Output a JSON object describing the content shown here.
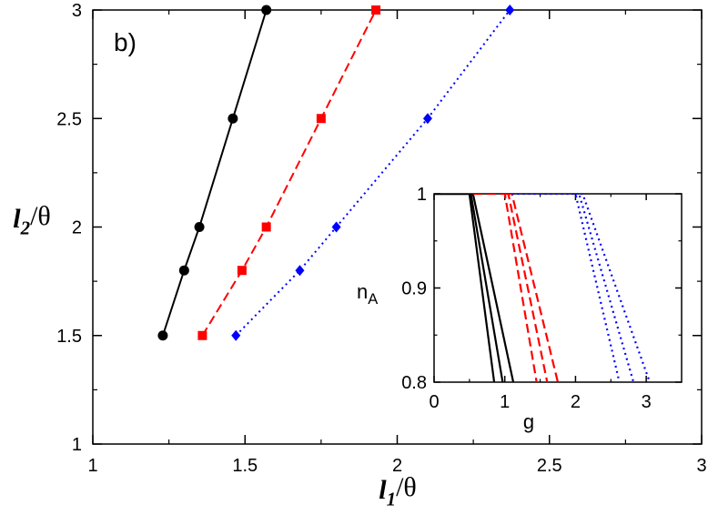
{
  "chart_data": [
    {
      "type": "line",
      "panel_label": "b)",
      "xlabel": {
        "main": "l",
        "sub": "1",
        "rest": "/θ"
      },
      "ylabel": {
        "main": "l",
        "sub": "2",
        "rest": "/θ"
      },
      "xlim": [
        1,
        3
      ],
      "ylim": [
        1,
        3
      ],
      "xticks": [
        1,
        1.5,
        2,
        2.5,
        3
      ],
      "yticks": [
        1,
        1.5,
        2,
        2.5,
        3
      ],
      "xtick_labels": [
        "1",
        "1.5",
        "2",
        "2.5",
        "3"
      ],
      "ytick_labels": [
        "1",
        "1.5",
        "2",
        "2.5",
        "3"
      ],
      "grid": false,
      "series": [
        {
          "color": "#000000",
          "linestyle": "solid",
          "marker": "circle",
          "points": [
            [
              1.23,
              1.5
            ],
            [
              1.3,
              1.8
            ],
            [
              1.35,
              2.0
            ],
            [
              1.46,
              2.5
            ],
            [
              1.57,
              3.0
            ]
          ]
        },
        {
          "color": "#ff0000",
          "linestyle": "dashed",
          "marker": "square",
          "points": [
            [
              1.36,
              1.5
            ],
            [
              1.49,
              1.8
            ],
            [
              1.57,
              2.0
            ],
            [
              1.75,
              2.5
            ],
            [
              1.93,
              3.0
            ]
          ]
        },
        {
          "color": "#0000ff",
          "linestyle": "dotted",
          "marker": "diamond",
          "points": [
            [
              1.47,
              1.5
            ],
            [
              1.68,
              1.8
            ],
            [
              1.8,
              2.0
            ],
            [
              2.1,
              2.5
            ],
            [
              2.37,
              3.0
            ]
          ]
        }
      ]
    },
    {
      "type": "line",
      "inset": true,
      "xlabel": "g",
      "ylabel": {
        "main": "n",
        "sub": "A"
      },
      "xlim": [
        0,
        3.5
      ],
      "ylim": [
        0.8,
        1.0
      ],
      "xticks": [
        0,
        1,
        2,
        3
      ],
      "yticks": [
        0.8,
        0.9,
        1.0
      ],
      "xtick_labels": [
        "0",
        "1",
        "2",
        "3"
      ],
      "ytick_labels": [
        "0.8",
        "0.9",
        "1"
      ],
      "grid": false,
      "series": [
        {
          "color": "#000000",
          "linestyle": "solid",
          "points": [
            [
              0,
              1.0
            ],
            [
              0.5,
              1.0
            ],
            [
              0.85,
              0.8
            ]
          ]
        },
        {
          "color": "#000000",
          "linestyle": "solid",
          "points": [
            [
              0,
              1.0
            ],
            [
              0.52,
              1.0
            ],
            [
              0.97,
              0.8
            ]
          ]
        },
        {
          "color": "#000000",
          "linestyle": "solid",
          "points": [
            [
              0,
              1.0
            ],
            [
              0.55,
              1.0
            ],
            [
              1.12,
              0.8
            ]
          ]
        },
        {
          "color": "#ff0000",
          "linestyle": "dashed",
          "points": [
            [
              0.55,
              1.0
            ],
            [
              1.0,
              1.0
            ],
            [
              1.45,
              0.8
            ]
          ]
        },
        {
          "color": "#ff0000",
          "linestyle": "dashed",
          "points": [
            [
              1.0,
              1.0
            ],
            [
              1.05,
              1.0
            ],
            [
              1.6,
              0.8
            ]
          ]
        },
        {
          "color": "#ff0000",
          "linestyle": "dashed",
          "points": [
            [
              1.0,
              1.0
            ],
            [
              1.1,
              1.0
            ],
            [
              1.75,
              0.8
            ]
          ]
        },
        {
          "color": "#0000ff",
          "linestyle": "dotted",
          "points": [
            [
              1.1,
              1.0
            ],
            [
              2.0,
              1.0
            ],
            [
              2.62,
              0.8
            ]
          ]
        },
        {
          "color": "#0000ff",
          "linestyle": "dotted",
          "points": [
            [
              2.0,
              1.0
            ],
            [
              2.05,
              1.0
            ],
            [
              2.82,
              0.8
            ]
          ]
        },
        {
          "color": "#0000ff",
          "linestyle": "dotted",
          "points": [
            [
              2.0,
              1.0
            ],
            [
              2.1,
              1.0
            ],
            [
              3.05,
              0.8
            ]
          ]
        }
      ]
    }
  ]
}
